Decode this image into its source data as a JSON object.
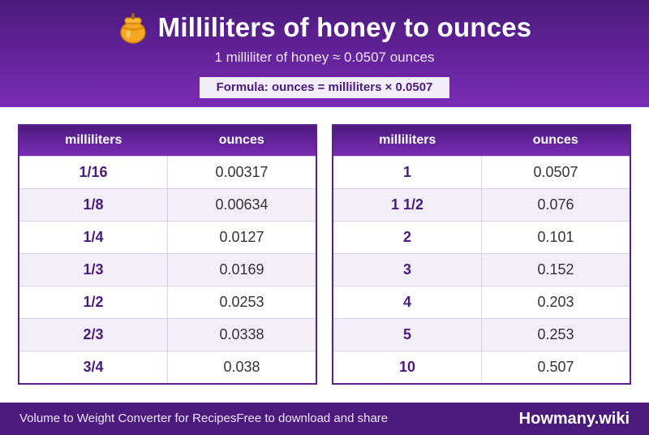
{
  "header": {
    "title": "Milliliters of honey to ounces",
    "icon": "honey-pot-icon",
    "subtitle": "1 milliliter of honey ≈ 0.0507 ounces",
    "formula": "Formula: ounces = milliliters × 0.0507"
  },
  "tables": {
    "left": {
      "headers": [
        "milliliters",
        "ounces"
      ],
      "rows": [
        [
          "1/16",
          "0.00317"
        ],
        [
          "1/8",
          "0.00634"
        ],
        [
          "1/4",
          "0.0127"
        ],
        [
          "1/3",
          "0.0169"
        ],
        [
          "1/2",
          "0.0253"
        ],
        [
          "2/3",
          "0.0338"
        ],
        [
          "3/4",
          "0.038"
        ]
      ]
    },
    "right": {
      "headers": [
        "milliliters",
        "ounces"
      ],
      "rows": [
        [
          "1",
          "0.0507"
        ],
        [
          "1 1/2",
          "0.076"
        ],
        [
          "2",
          "0.101"
        ],
        [
          "3",
          "0.152"
        ],
        [
          "4",
          "0.203"
        ],
        [
          "5",
          "0.253"
        ],
        [
          "10",
          "0.507"
        ]
      ]
    }
  },
  "footer": {
    "left_text": "Volume to Weight Converter for RecipesFree to download and share",
    "brand": "Howmany.wiki"
  },
  "colors": {
    "primary": "#4a1a7d",
    "primary_light": "#7b2cb4",
    "row_alt": "#f3eff9"
  }
}
